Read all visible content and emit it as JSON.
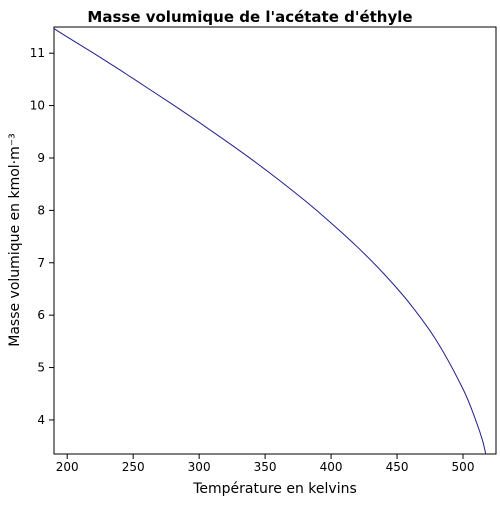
{
  "chart_data": {
    "type": "line",
    "title": "Masse volumique de l'acétate d'éthyle",
    "xlabel": "Température en kelvins",
    "ylabel": "Masse volumique en kmol·m⁻³",
    "xlim": [
      190,
      525
    ],
    "ylim": [
      3.35,
      11.5
    ],
    "xticks": [
      200,
      250,
      300,
      350,
      400,
      450,
      500
    ],
    "yticks": [
      4,
      5,
      6,
      7,
      8,
      9,
      10,
      11
    ],
    "grid": false,
    "legend": "none",
    "series": [
      {
        "color": "#1f1f8f",
        "x": [
          190.0,
          200,
          220,
          240,
          260,
          280,
          300,
          320,
          340,
          360,
          380,
          400,
          420,
          440,
          460,
          480,
          500,
          510,
          515,
          520,
          523.3
        ],
        "y": [
          11.47,
          11.31,
          11.0,
          10.68,
          10.35,
          10.02,
          9.68,
          9.33,
          8.97,
          8.59,
          8.19,
          7.76,
          7.3,
          6.79,
          6.21,
          5.51,
          4.59,
          3.97,
          3.59,
          3.1,
          3.35
        ]
      }
    ]
  }
}
